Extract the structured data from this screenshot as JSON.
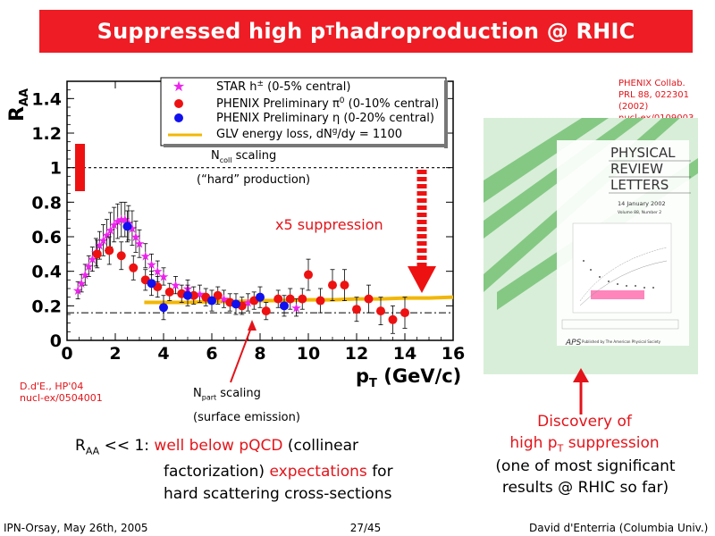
{
  "slide": {
    "title_main": "Suppressed high p",
    "title_sub": "T",
    "title_rest": " hadroproduction @ RHIC",
    "footer_left": "IPN-Orsay, May 26th, 2005",
    "footer_center": "27/45",
    "footer_right": "David d'Enterria (Columbia Univ.)"
  },
  "refs": {
    "phenix_ref": [
      "PHENIX Collab.",
      "PRL 88, 022301 (2002)",
      "nucl-ex/0109003"
    ],
    "dde_ref": [
      "D.d'E., HP'04",
      "nucl-ex/0504001"
    ]
  },
  "annotations": {
    "ncoll_N": "N",
    "ncoll_sub": "coll",
    "ncoll_rest": " scaling",
    "hard_production": "(“hard” production)",
    "x5": "x5 suppression",
    "npart_N": "N",
    "npart_sub": "part",
    "npart_rest": " scaling",
    "surface": "(surface emission)"
  },
  "discovery": {
    "line1": "Discovery of",
    "line2_pre": "high p",
    "line2_sub": "T",
    "line2_post": " suppression",
    "line3": "(one of most significant",
    "line4": "results @ RHIC so far)"
  },
  "conclusion": {
    "raa_R": "R",
    "raa_sub": "AA",
    "lt": " << 1: ",
    "red1": "well below pQCD",
    "black1": " (collinear",
    "black2": "factorization) ",
    "red2": "expectations",
    "black3": " for",
    "black4": "hard scattering cross-sections"
  },
  "journal": {
    "title_lines": [
      "PHYSICAL",
      "REVIEW",
      "LETTERS"
    ],
    "date": "14 January 2002",
    "volume": "Volume 88, Number 2",
    "publisher": "Published by The American Physical Society",
    "aps": "APS"
  },
  "colors": {
    "title_bg": "#ee1c24",
    "red": "#e3141a",
    "phenix_pi0": "#ee1111",
    "phenix_eta": "#1111ee",
    "star": "#ee22ee",
    "glv": "#f2b705",
    "journal_bg": "#d8eed8"
  },
  "chart_data": {
    "type": "scatter",
    "ylabel_R": "R",
    "ylabel_sub": "AA",
    "xlabel_p": "p",
    "xlabel_sub": "T",
    "xlabel_rest": " (GeV/c)",
    "xlim": [
      0,
      16
    ],
    "ylim": [
      0,
      1.5
    ],
    "xticks": [
      0,
      2,
      4,
      6,
      8,
      10,
      12,
      14,
      16
    ],
    "yticks": [
      0,
      0.2,
      0.4,
      0.6,
      0.8,
      1,
      1.2,
      1.4
    ],
    "grid": false,
    "legend_position": "top-right",
    "series": [
      {
        "name": "STAR h± (0-5% central)",
        "legend_main": "STAR h",
        "legend_sup": "±",
        "legend_rest": " (0-5% central)",
        "marker": "star",
        "color": "#ee22ee",
        "x": [
          0.45,
          0.6,
          0.75,
          0.9,
          1.05,
          1.2,
          1.35,
          1.5,
          1.65,
          1.8,
          1.95,
          2.1,
          2.25,
          2.4,
          2.55,
          2.7,
          2.85,
          3.0,
          3.25,
          3.5,
          3.75,
          4.0,
          4.5,
          5.0,
          5.5,
          6.5,
          7.5,
          9.5
        ],
        "y": [
          0.29,
          0.33,
          0.38,
          0.43,
          0.47,
          0.51,
          0.55,
          0.58,
          0.61,
          0.64,
          0.67,
          0.69,
          0.7,
          0.7,
          0.68,
          0.65,
          0.6,
          0.56,
          0.49,
          0.44,
          0.4,
          0.37,
          0.32,
          0.3,
          0.27,
          0.24,
          0.22,
          0.19
        ],
        "yerr": [
          0.05,
          0.05,
          0.06,
          0.06,
          0.07,
          0.08,
          0.08,
          0.09,
          0.09,
          0.1,
          0.1,
          0.1,
          0.1,
          0.1,
          0.1,
          0.1,
          0.09,
          0.08,
          0.07,
          0.06,
          0.06,
          0.05,
          0.05,
          0.05,
          0.05,
          0.05,
          0.05,
          0.05
        ]
      },
      {
        "name": "PHENIX Preliminary π0 (0-10% central)",
        "legend_main": "PHENIX Preliminary ",
        "legend_sym": "π",
        "legend_sup": "0",
        "legend_rest": " (0-10% central)",
        "marker": "circle",
        "color": "#ee1111",
        "x": [
          1.25,
          1.75,
          2.25,
          2.75,
          3.25,
          3.75,
          4.25,
          4.75,
          5.25,
          5.75,
          6.25,
          6.75,
          7.25,
          7.75,
          8.25,
          8.75,
          9.25,
          9.75,
          10.0,
          10.5,
          11.0,
          11.5,
          12.0,
          12.5,
          13.0,
          13.5,
          14.0
        ],
        "y": [
          0.5,
          0.52,
          0.49,
          0.42,
          0.35,
          0.31,
          0.28,
          0.27,
          0.26,
          0.25,
          0.26,
          0.22,
          0.2,
          0.23,
          0.17,
          0.24,
          0.24,
          0.24,
          0.38,
          0.23,
          0.32,
          0.32,
          0.18,
          0.24,
          0.17,
          0.12,
          0.16
        ],
        "yerr": [
          0.08,
          0.08,
          0.08,
          0.07,
          0.06,
          0.06,
          0.05,
          0.05,
          0.05,
          0.05,
          0.05,
          0.05,
          0.05,
          0.05,
          0.05,
          0.05,
          0.06,
          0.06,
          0.09,
          0.07,
          0.09,
          0.09,
          0.07,
          0.08,
          0.08,
          0.08,
          0.09
        ]
      },
      {
        "name": "PHENIX Preliminary η (0-20% central)",
        "legend_main": "PHENIX Preliminary ",
        "legend_sym": "η",
        "legend_sup": "",
        "legend_rest": " (0-20% central)",
        "marker": "circle",
        "color": "#1111ee",
        "x": [
          2.5,
          3.5,
          4.0,
          5.0,
          6.0,
          7.0,
          8.0,
          9.0
        ],
        "y": [
          0.66,
          0.33,
          0.19,
          0.26,
          0.23,
          0.21,
          0.25,
          0.2
        ],
        "yerr": [
          0.09,
          0.07,
          0.07,
          0.06,
          0.06,
          0.06,
          0.06,
          0.06
        ]
      },
      {
        "name": "GLV energy loss, dNg/dy = 1100",
        "legend_main": "GLV energy loss, dN",
        "legend_sup": "g",
        "legend_rest": "/dy = 1100",
        "marker": "band",
        "color": "#f2b705",
        "x": [
          3.2,
          4,
          5,
          6,
          7,
          8,
          9,
          10,
          11,
          12,
          13,
          14,
          15,
          16
        ],
        "y": [
          0.22,
          0.22,
          0.22,
          0.225,
          0.225,
          0.23,
          0.23,
          0.235,
          0.235,
          0.24,
          0.24,
          0.245,
          0.245,
          0.25
        ]
      }
    ],
    "reference_lines": [
      {
        "label": "Ncoll scaling",
        "y": 1.0
      },
      {
        "label": "Npart scaling",
        "y": 0.16
      }
    ]
  }
}
